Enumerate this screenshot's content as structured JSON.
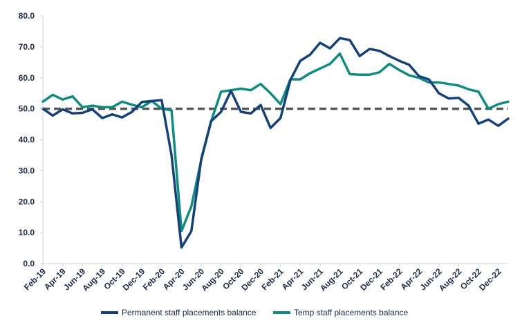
{
  "chart_data": {
    "type": "line",
    "ylim": [
      0,
      80
    ],
    "yticks": [
      "0.0",
      "10.0",
      "20.0",
      "30.0",
      "40.0",
      "50.0",
      "60.0",
      "70.0",
      "80.0"
    ],
    "x": [
      "Feb-19",
      "Mar-19",
      "Apr-19",
      "May-19",
      "Jun-19",
      "Jul-19",
      "Aug-19",
      "Sep-19",
      "Oct-19",
      "Nov-19",
      "Dec-19",
      "Jan-20",
      "Feb-20",
      "Mar-20",
      "Apr-20",
      "May-20",
      "Jun-20",
      "Jul-20",
      "Aug-20",
      "Sep-20",
      "Oct-20",
      "Nov-20",
      "Dec-20",
      "Jan-21",
      "Feb-21",
      "Mar-21",
      "Apr-21",
      "May-21",
      "Jun-21",
      "Jul-21",
      "Aug-21",
      "Sep-21",
      "Oct-21",
      "Nov-21",
      "Dec-21",
      "Jan-22",
      "Feb-22",
      "Mar-22",
      "Apr-22",
      "May-22",
      "Jun-22",
      "Jul-22",
      "Aug-22",
      "Sep-22",
      "Oct-22",
      "Nov-22",
      "Dec-22",
      "Jan-23"
    ],
    "xtick_labels": [
      "Feb-19",
      "Apr-19",
      "Jun-19",
      "Aug-19",
      "Oct-19",
      "Dec-19",
      "Feb-20",
      "Apr-20",
      "Jun-20",
      "Aug-20",
      "Oct-20",
      "Dec-20",
      "Feb-21",
      "Apr-21",
      "Jun-21",
      "Aug-21",
      "Oct-21",
      "Dec-21",
      "Feb-22",
      "Apr-22",
      "Jun-22",
      "Aug-22",
      "Oct-22",
      "Dec-22"
    ],
    "reference_line": 50,
    "series": [
      {
        "name": "Permanent staff placements balance",
        "color": "#14417a",
        "values": [
          50.0,
          47.8,
          49.8,
          48.5,
          48.7,
          49.8,
          47.0,
          48.2,
          47.2,
          49.0,
          52.2,
          52.5,
          52.8,
          35.0,
          5.2,
          10.5,
          33.8,
          46.0,
          49.0,
          55.8,
          49.0,
          48.5,
          51.2,
          43.8,
          47.0,
          59.3,
          65.5,
          67.5,
          71.3,
          69.5,
          72.8,
          72.2,
          67.0,
          69.3,
          68.7,
          67.0,
          65.5,
          64.2,
          60.5,
          59.5,
          55.0,
          53.3,
          53.5,
          51.0,
          45.2,
          46.5,
          44.5,
          46.8
        ]
      },
      {
        "name": "Temp staff placements balance",
        "color": "#0e8c7f",
        "values": [
          52.3,
          54.5,
          53.0,
          54.0,
          50.5,
          51.0,
          50.5,
          50.5,
          52.3,
          51.3,
          50.5,
          52.5,
          50.0,
          49.5,
          10.5,
          18.5,
          33.5,
          46.0,
          55.5,
          56.0,
          56.5,
          56.0,
          58.0,
          55.0,
          51.5,
          59.5,
          59.5,
          61.5,
          63.0,
          64.5,
          67.8,
          61.2,
          61.0,
          61.0,
          61.8,
          64.5,
          62.5,
          60.8,
          60.0,
          58.5,
          58.5,
          58.0,
          57.5,
          56.3,
          55.5,
          50.0,
          51.5,
          52.3
        ]
      }
    ],
    "legend_position": "bottom"
  }
}
